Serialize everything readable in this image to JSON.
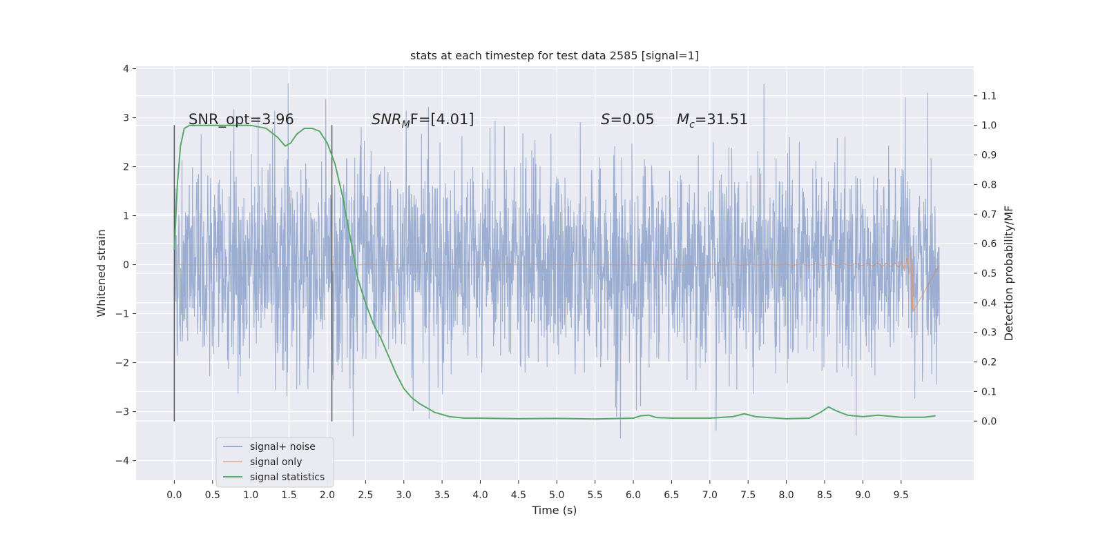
{
  "chart_data": {
    "type": "line",
    "title": "stats at each timestep for test data 2585 [signal=1]",
    "xlabel": "Time (s)",
    "ylabel_left": "Whitened strain",
    "ylabel_right": "Detection probability/MF",
    "xlim": [
      -0.5,
      10.45
    ],
    "ylim_left": [
      -4.4,
      4.05
    ],
    "ylim_right": [
      -0.2,
      1.2
    ],
    "xticks": [
      "0.0",
      "0.5",
      "1.0",
      "1.5",
      "2.0",
      "2.5",
      "3.0",
      "3.5",
      "4.0",
      "4.5",
      "5.0",
      "5.5",
      "6.0",
      "6.5",
      "7.0",
      "7.5",
      "8.0",
      "8.5",
      "9.0",
      "9.5"
    ],
    "yticks_left": [
      "−4",
      "−3",
      "−2",
      "−1",
      "0",
      "1",
      "2",
      "3",
      "4"
    ],
    "yticks_right": [
      "0.0",
      "0.1",
      "0.2",
      "0.3",
      "0.4",
      "0.5",
      "0.6",
      "0.7",
      "0.8",
      "0.9",
      "1.0",
      "1.1"
    ],
    "grid": true,
    "legend_position": "lower-left",
    "annotations": {
      "snr_opt": "SNR_opt=3.96",
      "snr_mf_prefix": "SNR",
      "snr_mf_sub": "M",
      "snr_mf_suffix": "F=[4.01]",
      "s_prefix": "S",
      "s_value": "=0.05",
      "mc_prefix": "M",
      "mc_sub": "c",
      "mc_value": "=31.51"
    },
    "vlines": [
      0.0,
      2.06
    ],
    "series": [
      {
        "name": "signal+ noise",
        "color": "#4c72b0",
        "axis": "left",
        "description_range": [
          -3.9,
          3.7
        ],
        "x_range": [
          0.0,
          10.0
        ]
      },
      {
        "name": "signal only",
        "color": "#dd8452",
        "axis": "left",
        "x_range": [
          0.0,
          9.65
        ],
        "peak_amplitude": [
          -0.95,
          0.85
        ]
      },
      {
        "name": "signal statistics",
        "color": "#55a868",
        "axis": "right",
        "x": [
          0.0,
          0.04,
          0.08,
          0.13,
          0.2,
          0.3,
          0.5,
          0.8,
          1.0,
          1.2,
          1.35,
          1.45,
          1.52,
          1.6,
          1.7,
          1.8,
          1.9,
          2.0,
          2.1,
          2.2,
          2.3,
          2.4,
          2.5,
          2.6,
          2.7,
          2.8,
          2.9,
          3.0,
          3.1,
          3.2,
          3.4,
          3.6,
          3.8,
          4.0,
          4.5,
          5.0,
          5.5,
          6.0,
          6.1,
          6.2,
          6.3,
          6.5,
          7.0,
          7.3,
          7.45,
          7.6,
          8.0,
          8.3,
          8.45,
          8.55,
          8.65,
          8.8,
          9.0,
          9.2,
          9.5,
          9.8,
          9.95
        ],
        "y": [
          0.58,
          0.8,
          0.93,
          0.99,
          1.0,
          1.0,
          1.0,
          1.0,
          1.0,
          0.99,
          0.96,
          0.93,
          0.94,
          0.97,
          0.99,
          0.99,
          0.98,
          0.94,
          0.87,
          0.76,
          0.62,
          0.48,
          0.4,
          0.33,
          0.28,
          0.22,
          0.16,
          0.11,
          0.08,
          0.06,
          0.03,
          0.015,
          0.01,
          0.01,
          0.008,
          0.009,
          0.007,
          0.01,
          0.018,
          0.02,
          0.012,
          0.01,
          0.01,
          0.015,
          0.025,
          0.015,
          0.008,
          0.01,
          0.03,
          0.048,
          0.035,
          0.02,
          0.015,
          0.02,
          0.013,
          0.013,
          0.018
        ]
      }
    ]
  }
}
